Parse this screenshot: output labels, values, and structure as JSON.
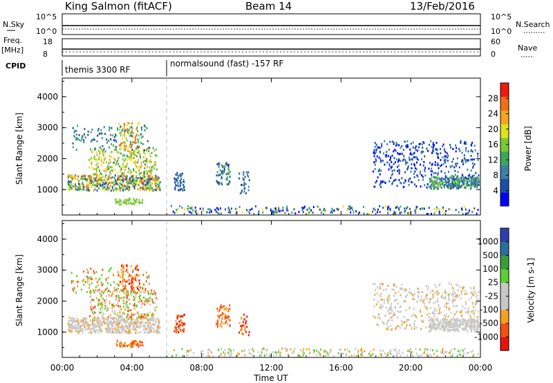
{
  "header": {
    "station": "King Salmon (fitACF)",
    "beam": "Beam 14",
    "date": "13/Feb/2016"
  },
  "top_panels": {
    "nsky_label": "N.Sky",
    "nsky_ticks": [
      "10^5",
      "10^0"
    ],
    "nsearch_label": "N.Search",
    "nsearch_ticks": [
      "10^5",
      "10^0"
    ],
    "freq_label": "Freq.",
    "freq_unit": "[MHz]",
    "freq_ticks": [
      "18",
      "8"
    ],
    "nave_label": "Nave",
    "nave_ticks": [
      "60",
      "0"
    ],
    "cpid_label": "CPID",
    "cpid_segments": [
      {
        "name": "themis 3300 RF",
        "start_hr": 0,
        "end_hr": 6
      },
      {
        "name": "normalsound (fast) -157 RF",
        "start_hr": 6,
        "end_hr": 24
      }
    ]
  },
  "chart_data": [
    {
      "type": "heatmap",
      "name": "power",
      "title": "",
      "xlabel": "Time UT",
      "ylabel": "Slant Range [km]",
      "colorbar_label": "Power [dB]",
      "colorbar_ticks": [
        "28",
        "24",
        "20",
        "16",
        "12",
        "8",
        "4"
      ],
      "colors": [
        "#0000ff",
        "#1f4ea6",
        "#3b7fa8",
        "#3aa85a",
        "#7ac832",
        "#dce617",
        "#f6a51e",
        "#f26f14",
        "#ee1c10"
      ],
      "xlim": [
        0,
        24
      ],
      "ylim": [
        180,
        4600
      ],
      "x_ticks": [
        "00:00",
        "04:00",
        "08:00",
        "12:00",
        "16:00",
        "20:00",
        "00:00"
      ],
      "y_ticks": [
        1000,
        2000,
        3000,
        4000
      ]
    },
    {
      "type": "heatmap",
      "name": "velocity",
      "title": "",
      "xlabel": "Time UT",
      "ylabel": "Slant Range [km]",
      "colorbar_label": "Velocity [m s-1]",
      "colorbar_ticks": [
        "1000",
        "500",
        "100",
        "25",
        "-25",
        "-100",
        "-500",
        "-1000"
      ],
      "colors": [
        "#e8120e",
        "#f34f14",
        "#f6a020",
        "#c8c8c8",
        "#c8c8c8",
        "#5ecf32",
        "#3a9c3a",
        "#2b6f96",
        "#2e3fb0"
      ],
      "xlim": [
        0,
        24
      ],
      "ylim": [
        180,
        4600
      ],
      "x_ticks": [
        "00:00",
        "04:00",
        "08:00",
        "12:00",
        "16:00",
        "20:00",
        "00:00"
      ],
      "y_ticks": [
        1000,
        2000,
        3000,
        4000
      ]
    }
  ],
  "x_axis_title": "Time UT"
}
